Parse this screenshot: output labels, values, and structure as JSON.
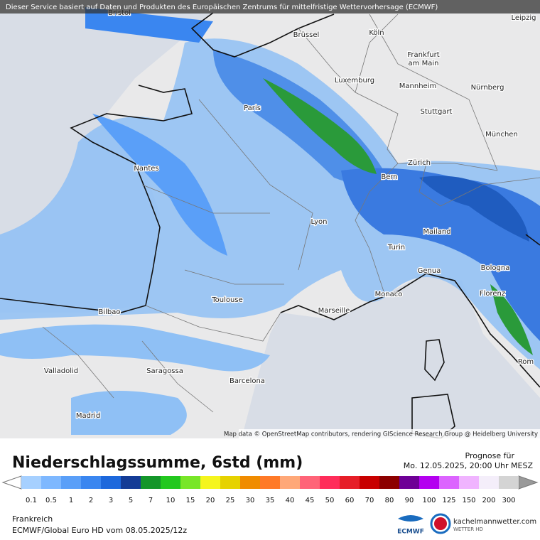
{
  "header": {
    "notice": "Dieser Service basiert auf Daten und Produkten des Europäischen Zentrums für mittelfristige Wettervorhersage (ECMWF)",
    "attribution": "Map data © OpenStreetMap contributors, rendering GIScience Research Group @ Heidelberg University"
  },
  "map": {
    "cities": [
      "Bristol",
      "Brüssel",
      "Köln",
      "Leipzig",
      "Frankfurt",
      "am Main",
      "Luxemburg",
      "Mannheim",
      "Nürnberg",
      "Paris",
      "Stuttgart",
      "München",
      "Nantes",
      "Zürich",
      "Bern",
      "Lyon",
      "Mailand",
      "Turin",
      "Bologna",
      "Genua",
      "Monaco",
      "Florenz",
      "Toulouse",
      "Marseille",
      "Bilbao",
      "Rom",
      "Valladolid",
      "Saragossa",
      "Barcelona",
      "Madrid"
    ]
  },
  "footer": {
    "title": "Niederschlagssumme, 6std (mm)",
    "forecast_label": "Prognose für",
    "forecast_time": "Mo. 12.05.2025, 20:00 Uhr MESZ",
    "region": "Frankreich",
    "model": "ECMWF/Global Euro HD vom  08.05.2025/12z",
    "ecmwf_logo": "ECMWF",
    "brand": "kachelmannwetter.com",
    "brand_sub": "WETTER HD"
  },
  "legend": {
    "labels": [
      "0.1",
      "0.5",
      "1",
      "2",
      "3",
      "5",
      "7",
      "10",
      "15",
      "20",
      "25",
      "30",
      "35",
      "40",
      "45",
      "50",
      "60",
      "70",
      "80",
      "90",
      "100",
      "125",
      "150",
      "200",
      "300"
    ],
    "colors": [
      "#a6d0ff",
      "#7eb8ff",
      "#5a9ff8",
      "#3a86f0",
      "#1d68dc",
      "#143c96",
      "#14962a",
      "#22c81e",
      "#78e628",
      "#f5f51e",
      "#e6d200",
      "#f08c00",
      "#ff7a28",
      "#ffa878",
      "#ff6478",
      "#ff2d5a",
      "#e61e28",
      "#c80000",
      "#8c0000",
      "#6e0096",
      "#b400f0",
      "#dc64ff",
      "#f0b4ff",
      "#f4eefa",
      "#d4d4d4"
    ]
  }
}
